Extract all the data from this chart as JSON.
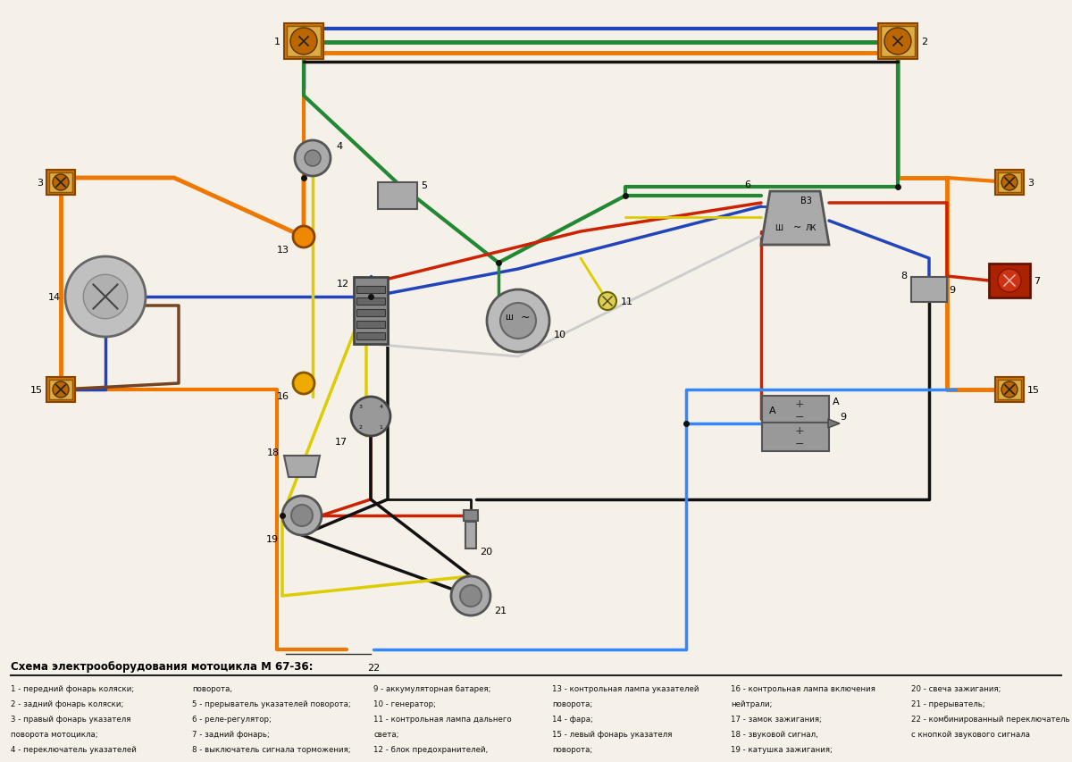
{
  "title": "Схема электрооборудования мотоцикла М 67-36:",
  "background_color": "#f5f0e8",
  "legend_cols": [
    [
      "1 - передний фонарь коляски;",
      "2 - задний фонарь коляски;",
      "3 - правый фонарь указателя",
      "поворота мотоцикла;",
      "4 - переключатель указателей"
    ],
    [
      "поворота,",
      "5 - прерыватель указателей поворота;",
      "6 - реле-регулятор;",
      "7 - задний фонарь;",
      "8 - выключатель сигнала торможения;"
    ],
    [
      "9 - аккумуляторная батарея;",
      "10 - генератор;",
      "11 - контрольная лампа дальнего",
      "света;",
      "12 - блок предохранителей,"
    ],
    [
      "13 - контрольная лампа указателей",
      "поворота;",
      "14 - фара;",
      "15 - левый фонарь указателя",
      "поворота;"
    ],
    [
      "16 - контрольная лампа включения",
      "нейтрали;",
      "17 - замок зажигания;",
      "18 - звуковой сигнал,",
      "19 - катушка зажигания;"
    ],
    [
      "20 - свеча зажигания;",
      "21 - прерыватель;",
      "22 - комбинированный переключатель",
      "с кнопкой звукового сигнала",
      ""
    ]
  ],
  "wire_colors": {
    "blue_dark": "#2244bb",
    "green": "#228833",
    "orange": "#ee7700",
    "red": "#cc2200",
    "yellow": "#ddcc00",
    "black": "#111111",
    "gray": "#999999",
    "brown": "#774422",
    "blue_light": "#3388ff",
    "white_gray": "#cccccc"
  }
}
